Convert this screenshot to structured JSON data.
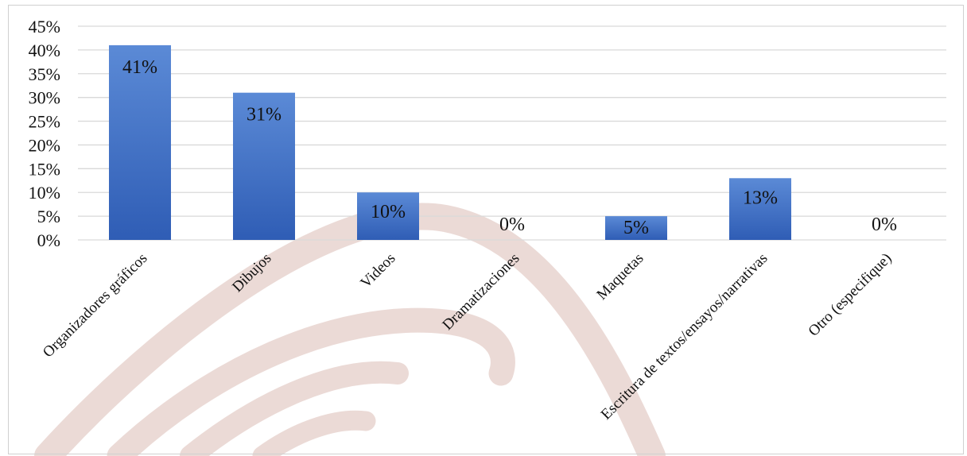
{
  "chart_data": {
    "type": "bar",
    "categories": [
      "Organizadores gráficos",
      "Dibujos",
      "Videos",
      "Dramatizaciones",
      "Maquetas",
      "Escritura de textos/ensayos/narrativas",
      "Otro (especifique)"
    ],
    "values": [
      41,
      31,
      10,
      0,
      5,
      13,
      0
    ],
    "data_labels": [
      "41%",
      "31%",
      "10%",
      "0%",
      "5%",
      "13%",
      "0%"
    ],
    "y_ticks": [
      "0%",
      "5%",
      "10%",
      "15%",
      "20%",
      "25%",
      "30%",
      "35%",
      "40%",
      "45%"
    ],
    "ylim": [
      0,
      45
    ],
    "title": "",
    "xlabel": "",
    "ylabel": "",
    "grid": true,
    "legend": "none"
  },
  "colors": {
    "bar_top": "#5b8ad6",
    "bar_bottom": "#2f5db5",
    "grid": "#d9d9d9",
    "watermark": "#e8d3cf"
  }
}
